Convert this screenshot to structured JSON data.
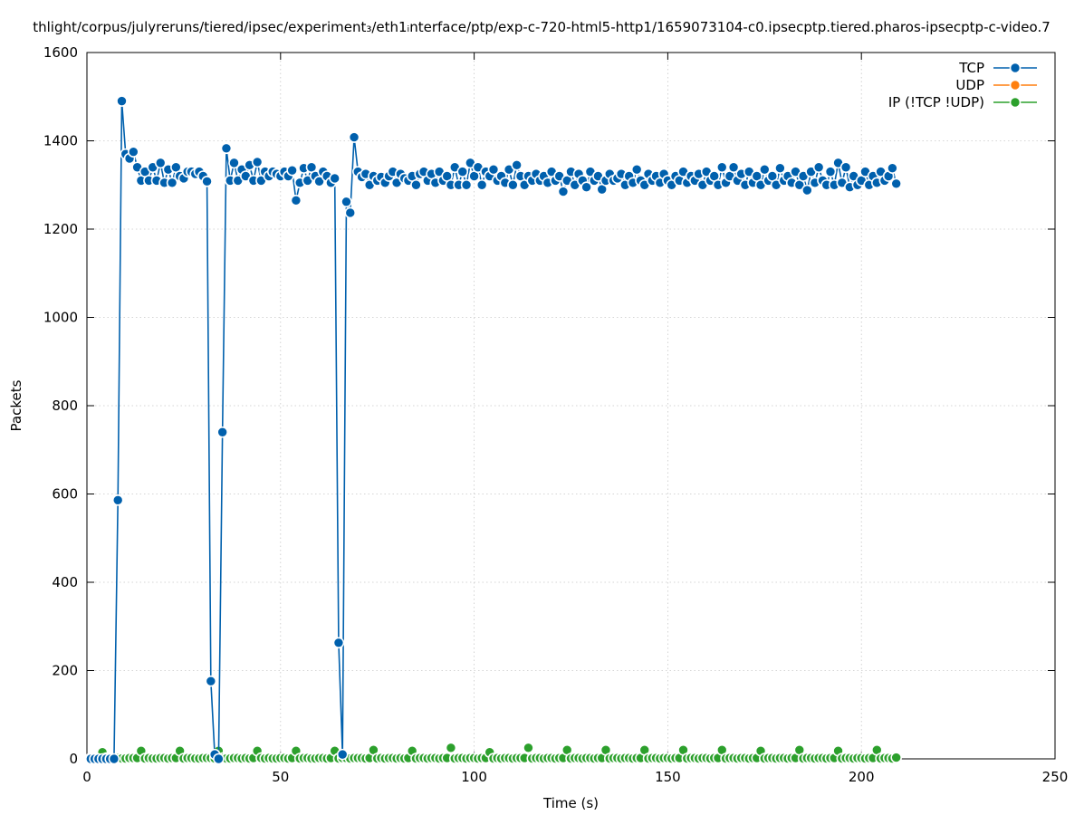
{
  "chart_data": {
    "type": "line",
    "title": "thlight/corpus/julyreruns/tiered/ipsec/experiment₃/eth1ᵢnterface/ptp/exp-c-720-html5-http1/1659073104-c0.ipsecptp.tiered.pharos-ipsecptp-c-video.7",
    "xlabel": "Time (s)",
    "ylabel": "Packets",
    "xlim": [
      0,
      250
    ],
    "ylim": [
      0,
      1600
    ],
    "xticks": [
      0,
      50,
      100,
      150,
      200,
      250
    ],
    "yticks": [
      0,
      200,
      400,
      600,
      800,
      1000,
      1200,
      1400,
      1600
    ],
    "grid": true,
    "legend_position": "top-right",
    "series": [
      {
        "name": "TCP",
        "color": "#0060ad",
        "x": [
          1,
          2,
          3,
          4,
          5,
          6,
          7,
          8,
          9,
          10,
          11,
          12,
          13,
          14,
          15,
          16,
          17,
          18,
          19,
          20,
          21,
          22,
          23,
          24,
          25,
          26,
          27,
          28,
          29,
          30,
          31,
          32,
          33,
          34,
          35,
          36,
          37,
          38,
          39,
          40,
          41,
          42,
          43,
          44,
          45,
          46,
          47,
          48,
          49,
          50,
          51,
          52,
          53,
          54,
          55,
          56,
          57,
          58,
          59,
          60,
          61,
          62,
          63,
          64,
          65,
          66,
          67,
          68,
          69,
          70,
          71,
          72,
          73,
          74,
          75,
          76,
          77,
          78,
          79,
          80,
          81,
          82,
          83,
          84,
          85,
          86,
          87,
          88,
          89,
          90,
          91,
          92,
          93,
          94,
          95,
          96,
          97,
          98,
          99,
          100,
          101,
          102,
          103,
          104,
          105,
          106,
          107,
          108,
          109,
          110,
          111,
          112,
          113,
          114,
          115,
          116,
          117,
          118,
          119,
          120,
          121,
          122,
          123,
          124,
          125,
          126,
          127,
          128,
          129,
          130,
          131,
          132,
          133,
          134,
          135,
          136,
          137,
          138,
          139,
          140,
          141,
          142,
          143,
          144,
          145,
          146,
          147,
          148,
          149,
          150,
          151,
          152,
          153,
          154,
          155,
          156,
          157,
          158,
          159,
          160,
          161,
          162,
          163,
          164,
          165,
          166,
          167,
          168,
          169,
          170,
          171,
          172,
          173,
          174,
          175,
          176,
          177,
          178,
          179,
          180,
          181,
          182,
          183,
          184,
          185,
          186,
          187,
          188,
          189,
          190,
          191,
          192,
          193,
          194,
          195,
          196,
          197,
          198,
          199,
          200,
          201,
          202,
          203,
          204,
          205,
          206,
          207,
          208,
          209
        ],
        "y": [
          0,
          0,
          0,
          0,
          0,
          0,
          0,
          586,
          1490,
          1370,
          1360,
          1375,
          1340,
          1310,
          1330,
          1310,
          1340,
          1310,
          1350,
          1305,
          1335,
          1305,
          1340,
          1320,
          1315,
          1330,
          1330,
          1325,
          1330,
          1320,
          1308,
          176,
          10,
          0,
          740,
          1383,
          1310,
          1350,
          1310,
          1335,
          1320,
          1345,
          1310,
          1352,
          1310,
          1330,
          1320,
          1330,
          1325,
          1320,
          1330,
          1320,
          1333,
          1265,
          1305,
          1338,
          1310,
          1340,
          1320,
          1308,
          1330,
          1320,
          1305,
          1315,
          263,
          10,
          1262,
          1237,
          1408,
          1330,
          1318,
          1325,
          1300,
          1320,
          1310,
          1318,
          1305,
          1320,
          1330,
          1305,
          1325,
          1315,
          1310,
          1320,
          1300,
          1325,
          1330,
          1310,
          1325,
          1305,
          1330,
          1310,
          1320,
          1300,
          1340,
          1300,
          1330,
          1300,
          1350,
          1320,
          1340,
          1300,
          1330,
          1320,
          1335,
          1310,
          1320,
          1305,
          1335,
          1300,
          1345,
          1320,
          1300,
          1320,
          1310,
          1325,
          1310,
          1320,
          1305,
          1330,
          1310,
          1320,
          1285,
          1310,
          1330,
          1300,
          1325,
          1310,
          1295,
          1330,
          1310,
          1320,
          1290,
          1310,
          1325,
          1310,
          1315,
          1325,
          1300,
          1320,
          1305,
          1335,
          1310,
          1300,
          1325,
          1310,
          1320,
          1305,
          1325,
          1310,
          1300,
          1320,
          1310,
          1330,
          1305,
          1320,
          1310,
          1325,
          1300,
          1330,
          1310,
          1320,
          1300,
          1340,
          1305,
          1320,
          1340,
          1310,
          1325,
          1300,
          1330,
          1305,
          1320,
          1300,
          1335,
          1310,
          1320,
          1300,
          1338,
          1310,
          1320,
          1305,
          1330,
          1300,
          1320,
          1288,
          1330,
          1305,
          1340,
          1310,
          1300,
          1330,
          1300,
          1350,
          1305,
          1340,
          1295,
          1320,
          1300,
          1310,
          1330,
          1300,
          1320,
          1305,
          1330,
          1310,
          1320,
          1338,
          1303
        ]
      },
      {
        "name": "UDP",
        "color": "#ff7f0e",
        "x": [],
        "y": []
      },
      {
        "name": "IP (!TCP  !UDP)",
        "color": "#2ca02c",
        "x": [
          1,
          2,
          3,
          4,
          5,
          6,
          7,
          8,
          9,
          10,
          11,
          12,
          13,
          14,
          15,
          16,
          17,
          18,
          19,
          20,
          21,
          22,
          23,
          24,
          25,
          26,
          27,
          28,
          29,
          30,
          31,
          32,
          33,
          34,
          35,
          36,
          37,
          38,
          39,
          40,
          41,
          42,
          43,
          44,
          45,
          46,
          47,
          48,
          49,
          50,
          51,
          52,
          53,
          54,
          55,
          56,
          57,
          58,
          59,
          60,
          61,
          62,
          63,
          64,
          65,
          66,
          67,
          68,
          69,
          70,
          71,
          72,
          73,
          74,
          75,
          76,
          77,
          78,
          79,
          80,
          81,
          82,
          83,
          84,
          85,
          86,
          87,
          88,
          89,
          90,
          91,
          92,
          93,
          94,
          95,
          96,
          97,
          98,
          99,
          100,
          101,
          102,
          103,
          104,
          105,
          106,
          107,
          108,
          109,
          110,
          111,
          112,
          113,
          114,
          115,
          116,
          117,
          118,
          119,
          120,
          121,
          122,
          123,
          124,
          125,
          126,
          127,
          128,
          129,
          130,
          131,
          132,
          133,
          134,
          135,
          136,
          137,
          138,
          139,
          140,
          141,
          142,
          143,
          144,
          145,
          146,
          147,
          148,
          149,
          150,
          151,
          152,
          153,
          154,
          155,
          156,
          157,
          158,
          159,
          160,
          161,
          162,
          163,
          164,
          165,
          166,
          167,
          168,
          169,
          170,
          171,
          172,
          173,
          174,
          175,
          176,
          177,
          178,
          179,
          180,
          181,
          182,
          183,
          184,
          185,
          186,
          187,
          188,
          189,
          190,
          191,
          192,
          193,
          194,
          195,
          196,
          197,
          198,
          199,
          200,
          201,
          202,
          203,
          204,
          205,
          206,
          207,
          208,
          209
        ],
        "y": [
          2,
          2,
          1,
          15,
          2,
          2,
          1,
          2,
          1,
          1,
          2,
          2,
          2,
          18,
          1,
          2,
          1,
          1,
          2,
          2,
          1,
          2,
          2,
          18,
          1,
          2,
          2,
          1,
          1,
          2,
          2,
          2,
          1,
          18,
          2,
          1,
          1,
          2,
          2,
          1,
          2,
          1,
          2,
          18,
          2,
          1,
          2,
          1,
          1,
          2,
          2,
          1,
          2,
          18,
          1,
          2,
          2,
          1,
          1,
          2,
          2,
          1,
          2,
          18,
          1,
          2,
          2,
          1,
          2,
          2,
          2,
          1,
          2,
          20,
          1,
          2,
          1,
          2,
          2,
          1,
          2,
          1,
          2,
          18,
          1,
          2,
          2,
          1,
          2,
          2,
          1,
          2,
          2,
          25,
          1,
          2,
          2,
          1,
          2,
          2,
          1,
          2,
          2,
          15,
          1,
          2,
          1,
          2,
          2,
          1,
          2,
          2,
          2,
          25,
          1,
          2,
          2,
          1,
          2,
          2,
          1,
          2,
          2,
          20,
          1,
          2,
          2,
          1,
          2,
          2,
          1,
          2,
          2,
          20,
          1,
          2,
          2,
          1,
          2,
          2,
          1,
          2,
          2,
          20,
          1,
          2,
          2,
          1,
          2,
          2,
          1,
          2,
          2,
          20,
          1,
          2,
          2,
          1,
          2,
          2,
          1,
          2,
          2,
          20,
          1,
          2,
          2,
          1,
          2,
          2,
          1,
          2,
          2,
          18,
          1,
          2,
          2,
          1,
          2,
          2,
          1,
          2,
          2,
          20,
          1,
          2,
          2,
          1,
          2,
          2,
          1,
          2,
          2,
          18,
          1,
          2,
          2,
          1,
          2,
          2,
          1,
          2,
          2,
          20,
          1,
          2,
          2,
          1,
          3
        ]
      }
    ]
  }
}
